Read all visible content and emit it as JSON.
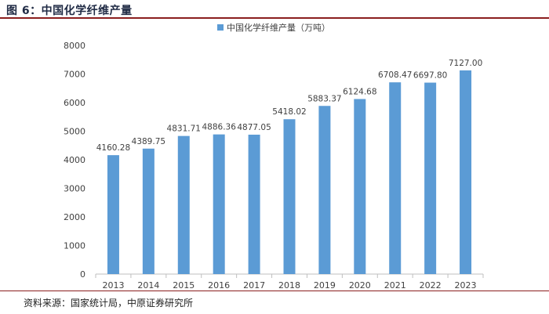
{
  "figure_title": "图 6：中国化学纤维产量",
  "source_text": "资料来源：国家统计局，中原证券研究所",
  "chart_data": {
    "type": "bar",
    "title": "",
    "xlabel": "",
    "ylabel": "",
    "categories": [
      "2013",
      "2014",
      "2015",
      "2016",
      "2017",
      "2018",
      "2019",
      "2020",
      "2021",
      "2022",
      "2023"
    ],
    "series": [
      {
        "name": "中国化学纤维产量（万吨）",
        "values": [
          4160.28,
          4389.75,
          4831.71,
          4886.36,
          4877.05,
          5418.02,
          5883.37,
          6124.68,
          6708.47,
          6697.8,
          7127.0
        ],
        "labels": [
          "4160.28",
          "4389.75",
          "4831.71",
          "4886.36",
          "4877.05",
          "5418.02",
          "5883.37",
          "6124.68",
          "6708.47",
          "6697.80",
          "7127.00"
        ]
      }
    ],
    "ylim": [
      0,
      8000
    ],
    "yticks": [
      0,
      1000,
      2000,
      3000,
      4000,
      5000,
      6000,
      7000,
      8000
    ],
    "grid": false,
    "legend": "top",
    "colors": {
      "bar": "#5b9bd5",
      "axis": "#bfbfbf",
      "text": "#404040"
    }
  }
}
